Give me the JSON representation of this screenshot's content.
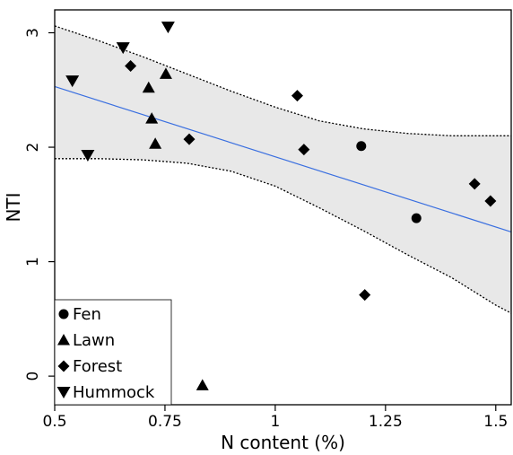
{
  "chart_data": {
    "type": "scatter",
    "xlabel": "N content (%)",
    "ylabel": "NTI",
    "xlim": [
      0.5,
      1.535
    ],
    "ylim": [
      -0.25,
      3.2
    ],
    "xticks": [
      0.5,
      0.75,
      1,
      1.25,
      1.5
    ],
    "xtick_labels": [
      "0.5",
      "0.75",
      "1",
      "1.25",
      "1.5"
    ],
    "yticks": [
      0,
      1,
      2,
      3
    ],
    "ytick_labels": [
      "0",
      "1",
      "2",
      "3"
    ],
    "grid": false,
    "legend_position": "bottom-left",
    "series": [
      {
        "name": "Fen",
        "marker": "circle",
        "points": [
          {
            "x": 1.195,
            "y": 2.01
          },
          {
            "x": 1.32,
            "y": 1.38
          }
        ]
      },
      {
        "name": "Lawn",
        "marker": "triangle-up",
        "points": [
          {
            "x": 0.713,
            "y": 2.52
          },
          {
            "x": 0.72,
            "y": 2.25
          },
          {
            "x": 0.728,
            "y": 2.03
          },
          {
            "x": 0.752,
            "y": 2.64
          },
          {
            "x": 0.835,
            "y": -0.08
          }
        ]
      },
      {
        "name": "Forest",
        "marker": "diamond",
        "points": [
          {
            "x": 0.672,
            "y": 2.71
          },
          {
            "x": 0.805,
            "y": 2.07
          },
          {
            "x": 1.05,
            "y": 2.45
          },
          {
            "x": 1.065,
            "y": 1.98
          },
          {
            "x": 1.203,
            "y": 0.71
          },
          {
            "x": 1.452,
            "y": 1.68
          },
          {
            "x": 1.488,
            "y": 1.53
          }
        ]
      },
      {
        "name": "Hummock",
        "marker": "triangle-down",
        "points": [
          {
            "x": 0.54,
            "y": 2.58
          },
          {
            "x": 0.575,
            "y": 1.93
          },
          {
            "x": 0.655,
            "y": 2.87
          },
          {
            "x": 0.757,
            "y": 3.05
          }
        ]
      }
    ],
    "fit_line": {
      "x": [
        0.5,
        1.535
      ],
      "y": [
        2.53,
        1.26
      ],
      "color": "#3a6fe0"
    },
    "confidence_band": {
      "x": [
        0.5,
        0.6,
        0.7,
        0.8,
        0.9,
        1.0,
        1.1,
        1.2,
        1.3,
        1.4,
        1.5,
        1.535
      ],
      "upper": [
        3.06,
        2.93,
        2.79,
        2.64,
        2.49,
        2.35,
        2.23,
        2.16,
        2.12,
        2.1,
        2.1,
        2.1
      ],
      "lower": [
        1.9,
        1.9,
        1.89,
        1.86,
        1.79,
        1.66,
        1.47,
        1.27,
        1.06,
        0.86,
        0.62,
        0.55
      ],
      "fill": "#e8e8e8"
    }
  }
}
